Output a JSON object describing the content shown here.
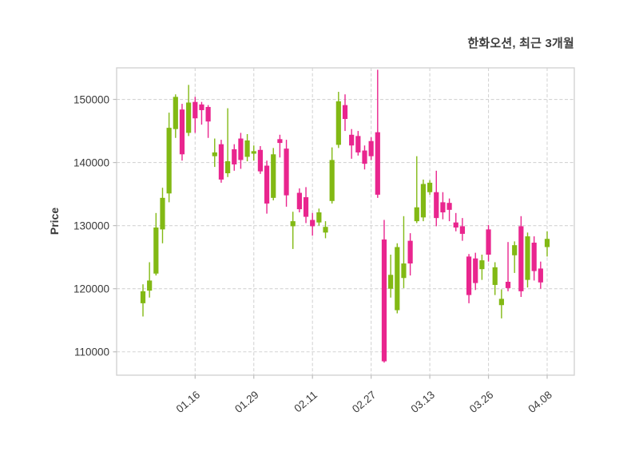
{
  "figure": {
    "title": "한화오션, 최근 3개월",
    "y_axis_label": "Price"
  },
  "chart_data": {
    "type": "candlestick",
    "title": "한화오션, 최근 3개월",
    "series_name": "한화오션",
    "period_label": "최근 3개월",
    "xlabel": "",
    "ylabel": "Price",
    "ylim": [
      106300,
      155000
    ],
    "y_ticks": [
      110000,
      120000,
      130000,
      140000,
      150000
    ],
    "x_tick_labels": [
      "01.16",
      "01.29",
      "02.11",
      "02.27",
      "03.13",
      "03.26",
      "04.08"
    ],
    "x_tick_candle_indices": [
      8,
      17,
      26,
      35,
      44,
      53,
      62
    ],
    "grid": {
      "show": true,
      "style": "dashed",
      "color": "#d4d4d4"
    },
    "colors": {
      "up": "#82b914",
      "down": "#e9258e",
      "background": "#ffffff",
      "spine": "#d0d0d0",
      "tick_mark": "#bdbdbd",
      "tick_text": "#3a3a3a"
    },
    "ohlc_format": "open,high,low,close",
    "candles": [
      [
        117700,
        120700,
        115600,
        119600
      ],
      [
        119700,
        124200,
        118600,
        121300
      ],
      [
        122400,
        132000,
        122100,
        129700
      ],
      [
        129400,
        136000,
        127200,
        134400
      ],
      [
        135100,
        147900,
        133700,
        145500
      ],
      [
        145300,
        150800,
        143900,
        150400
      ],
      [
        148400,
        149300,
        140300,
        141300
      ],
      [
        144700,
        152300,
        144200,
        149500
      ],
      [
        149600,
        150400,
        144700,
        147000
      ],
      [
        149200,
        149600,
        146000,
        148300
      ],
      [
        148800,
        149100,
        143900,
        146500
      ],
      [
        141000,
        143800,
        139300,
        141600
      ],
      [
        142900,
        143600,
        136800,
        137300
      ],
      [
        138300,
        148600,
        137700,
        140200
      ],
      [
        142100,
        142900,
        138700,
        139700
      ],
      [
        143800,
        144700,
        139000,
        140400
      ],
      [
        140900,
        144500,
        140200,
        143500
      ],
      [
        141400,
        142700,
        140300,
        141800
      ],
      [
        142000,
        142600,
        138200,
        138600
      ],
      [
        139500,
        140300,
        131900,
        133500
      ],
      [
        134400,
        142300,
        134000,
        141300
      ],
      [
        143700,
        144400,
        140800,
        143100
      ],
      [
        142200,
        143600,
        133000,
        134800
      ],
      [
        129900,
        132200,
        126300,
        130700
      ],
      [
        135200,
        135900,
        132100,
        132600
      ],
      [
        134500,
        136100,
        130400,
        131400
      ],
      [
        130900,
        132000,
        128400,
        129900
      ],
      [
        130500,
        132700,
        130000,
        132100
      ],
      [
        128900,
        130700,
        128000,
        129800
      ],
      [
        133900,
        142400,
        133500,
        140400
      ],
      [
        142800,
        151200,
        142300,
        149700
      ],
      [
        149100,
        150800,
        145000,
        146900
      ],
      [
        144400,
        145300,
        140600,
        142700
      ],
      [
        144200,
        145000,
        141100,
        141600
      ],
      [
        141900,
        142700,
        138900,
        139800
      ],
      [
        143400,
        144000,
        140400,
        141000
      ],
      [
        144800,
        154700,
        134400,
        134900
      ],
      [
        127800,
        130900,
        108300,
        108500
      ],
      [
        120000,
        125400,
        118600,
        122200
      ],
      [
        116600,
        127200,
        116100,
        126600
      ],
      [
        121700,
        131500,
        120100,
        124000
      ],
      [
        127600,
        128800,
        122100,
        124000
      ],
      [
        130700,
        141000,
        130400,
        132900
      ],
      [
        131300,
        137300,
        130700,
        136600
      ],
      [
        135300,
        137200,
        134900,
        136800
      ],
      [
        135300,
        138700,
        129900,
        131200
      ],
      [
        133700,
        135300,
        131000,
        132100
      ],
      [
        133600,
        134300,
        130700,
        132500
      ],
      [
        130500,
        132000,
        129100,
        129700
      ],
      [
        129900,
        131200,
        127600,
        128700
      ],
      [
        125100,
        125500,
        117700,
        119000
      ],
      [
        124800,
        125700,
        119800,
        120900
      ],
      [
        123100,
        125400,
        121400,
        124500
      ],
      [
        129400,
        130100,
        124300,
        125400
      ],
      [
        120600,
        124200,
        119000,
        123400
      ],
      [
        117400,
        119900,
        115300,
        118400
      ],
      [
        121100,
        127400,
        119600,
        120100
      ],
      [
        125300,
        127500,
        122500,
        126900
      ],
      [
        129900,
        131500,
        118700,
        119600
      ],
      [
        121400,
        128900,
        120200,
        128300
      ],
      [
        127300,
        128300,
        121300,
        122800
      ],
      [
        123200,
        124300,
        120000,
        121000
      ],
      [
        126600,
        129100,
        125100,
        127900
      ]
    ]
  }
}
